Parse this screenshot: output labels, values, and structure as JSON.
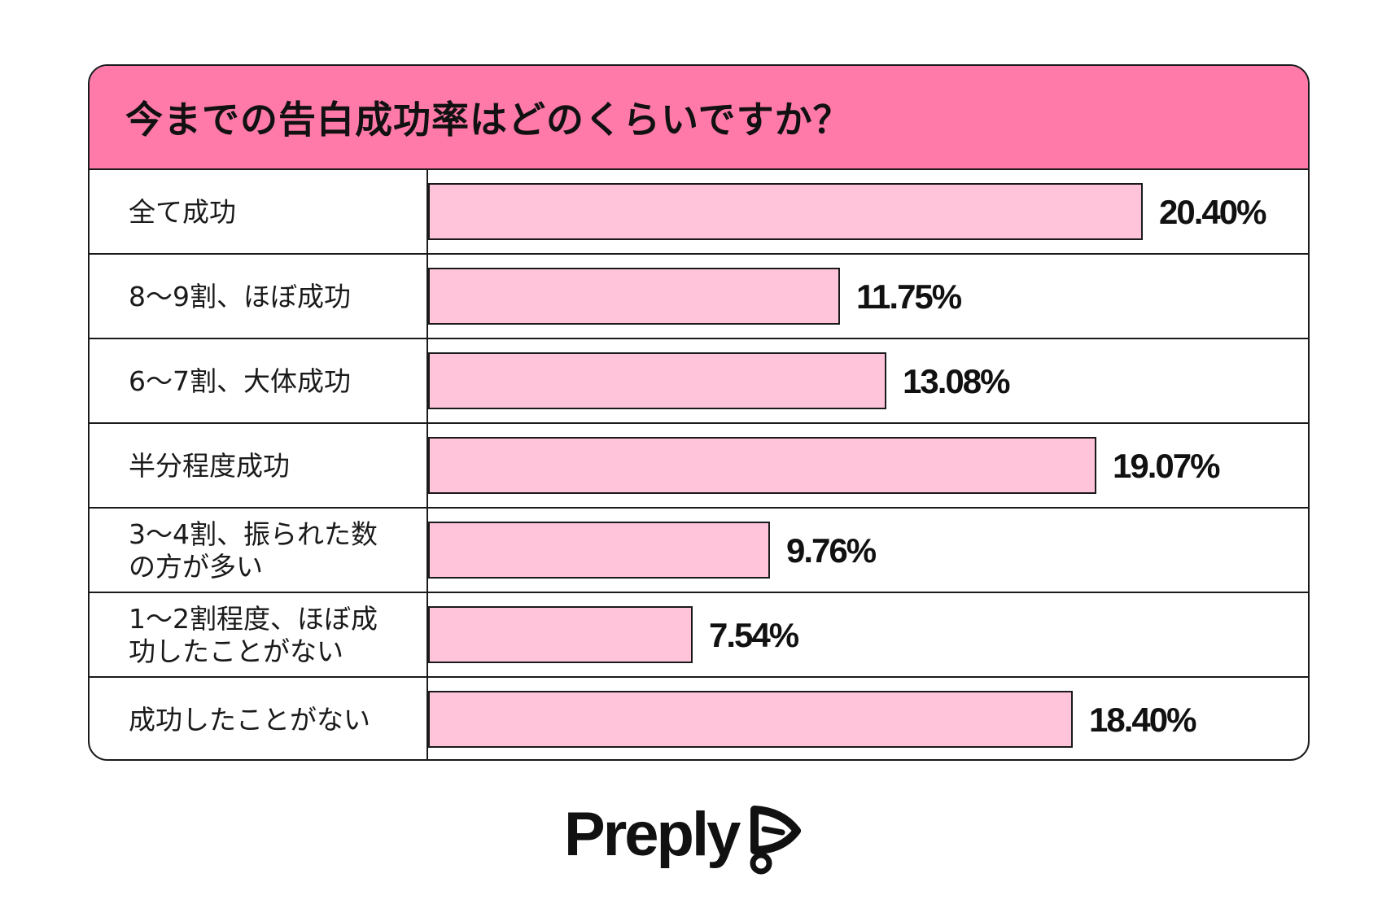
{
  "chart_data": {
    "type": "bar",
    "orientation": "horizontal",
    "title": "今までの告白成功率はどのくらいですか？",
    "categories": [
      [
        "全て成功"
      ],
      [
        "8〜9割、ほぼ成功"
      ],
      [
        "6〜7割、大体成功"
      ],
      [
        "半分程度成功"
      ],
      [
        "3〜4割、振られた数",
        "の方が多い"
      ],
      [
        "1〜2割程度、ほぼ成",
        "功したことがない"
      ],
      [
        "成功したことがない"
      ]
    ],
    "values": [
      20.4,
      11.75,
      13.08,
      19.07,
      9.76,
      7.54,
      18.4
    ],
    "value_labels": [
      "20.40%",
      "11.75%",
      "13.08%",
      "19.07%",
      "9.76%",
      "7.54%",
      "18.40%"
    ],
    "xlim": [
      0,
      20.4
    ],
    "colors": {
      "header": "#ff7aa8",
      "bar": "#ffc3da",
      "border": "#1a1a1a"
    }
  },
  "brand": {
    "name": "Preply",
    "icon": "preply-logo-icon"
  }
}
